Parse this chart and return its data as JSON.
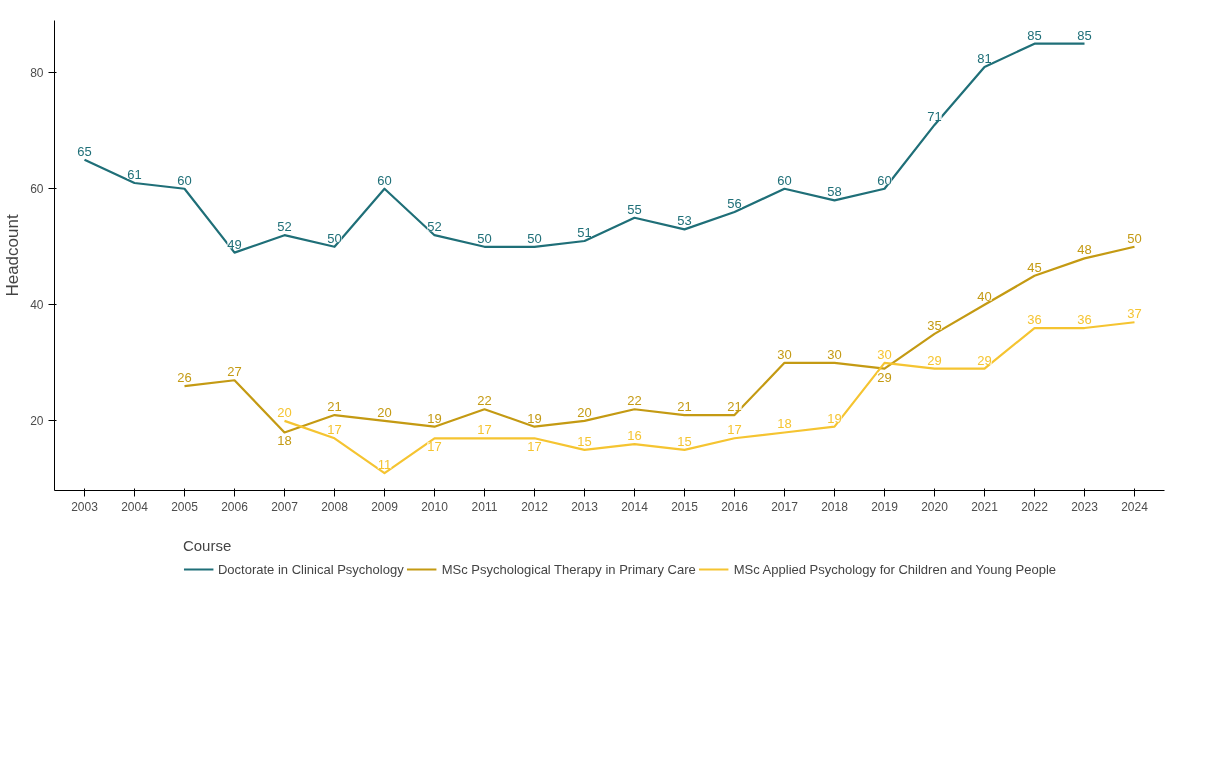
{
  "chart_data": {
    "type": "line",
    "ylabel": "Headcount",
    "legend_title": "Course",
    "categories": [
      "2003",
      "2004",
      "2005",
      "2006",
      "2007",
      "2008",
      "2009",
      "2010",
      "2011",
      "2012",
      "2013",
      "2014",
      "2015",
      "2016",
      "2017",
      "2018",
      "2019",
      "2020",
      "2021",
      "2022",
      "2023",
      "2024"
    ],
    "series": [
      {
        "name": "Doctorate in Clinical Psychology",
        "color": "#1f6f78",
        "values": [
          65,
          61,
          60,
          49,
          52,
          50,
          60,
          52,
          50,
          50,
          51,
          55,
          53,
          56,
          60,
          58,
          60,
          71,
          81,
          85,
          85,
          null
        ]
      },
      {
        "name": "MSc Psychological Therapy in Primary Care",
        "color": "#c49a13",
        "values": [
          null,
          null,
          26,
          27,
          18,
          21,
          20,
          19,
          22,
          19,
          20,
          22,
          21,
          21,
          30,
          30,
          29,
          35,
          40,
          45,
          48,
          50
        ]
      },
      {
        "name": "MSc Applied Psychology for Children and Young People",
        "color": "#f5c431",
        "values": [
          null,
          null,
          null,
          null,
          20,
          17,
          11,
          17,
          17,
          17,
          15,
          16,
          15,
          17,
          18,
          19,
          30,
          29,
          29,
          36,
          36,
          37
        ]
      }
    ],
    "ylim": [
      8,
      89
    ],
    "yticks": [
      20,
      40,
      60,
      80
    ],
    "grid": false,
    "legend": "bottom",
    "data_labels": true,
    "marker": "none",
    "line_style": "solid"
  }
}
